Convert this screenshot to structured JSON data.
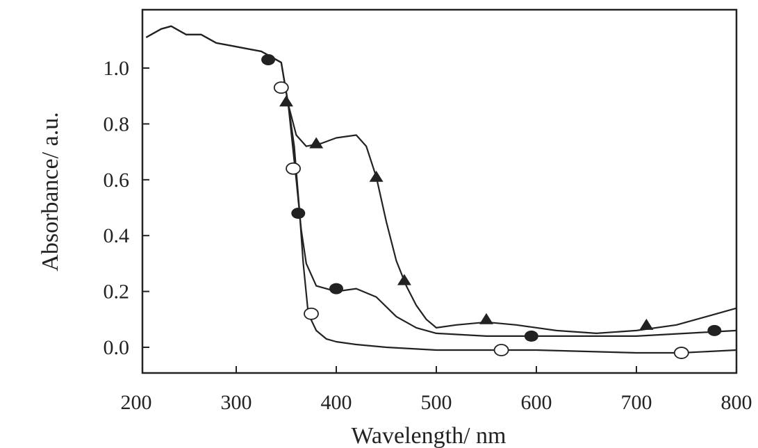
{
  "chart_data": {
    "type": "line",
    "title": "",
    "xlabel": "Wavelength/ nm",
    "ylabel": "Absorbance/ a.u.",
    "xlim": [
      200,
      800
    ],
    "ylim": [
      -0.1,
      1.2
    ],
    "grid": false,
    "legend": "none",
    "x_ticks": [
      200,
      300,
      400,
      500,
      600,
      700,
      800
    ],
    "x_tick_labels": [
      "200",
      "300",
      "400",
      "500",
      "600",
      "700",
      "800"
    ],
    "y_ticks": [
      0.0,
      0.2,
      0.4,
      0.6,
      0.8,
      1.0
    ],
    "y_tick_labels": [
      "0.0",
      "0.2",
      "0.4",
      "0.6",
      "0.8",
      "1.0"
    ],
    "series": [
      {
        "marker": "filled-triangle",
        "color": "#222222",
        "x": [
          210,
          225,
          235,
          250,
          265,
          280,
          295,
          310,
          325,
          345,
          352,
          360,
          370,
          385,
          400,
          420,
          430,
          440,
          450,
          460,
          470,
          480,
          490,
          500,
          520,
          550,
          580,
          620,
          660,
          700,
          740,
          770,
          800
        ],
        "y": [
          1.11,
          1.14,
          1.15,
          1.12,
          1.12,
          1.09,
          1.08,
          1.07,
          1.06,
          1.02,
          0.87,
          0.76,
          0.72,
          0.73,
          0.75,
          0.76,
          0.72,
          0.61,
          0.45,
          0.31,
          0.22,
          0.15,
          0.1,
          0.07,
          0.08,
          0.09,
          0.08,
          0.06,
          0.05,
          0.06,
          0.08,
          0.11,
          0.14
        ],
        "marker_x": [
          350,
          380,
          440,
          468,
          550,
          710
        ],
        "marker_y": [
          0.88,
          0.73,
          0.61,
          0.24,
          0.1,
          0.08
        ]
      },
      {
        "marker": "filled-circle",
        "color": "#222222",
        "x": [
          210,
          225,
          235,
          250,
          265,
          280,
          295,
          310,
          325,
          345,
          352,
          360,
          365,
          370,
          380,
          400,
          420,
          440,
          460,
          480,
          500,
          550,
          600,
          650,
          700,
          750,
          800
        ],
        "y": [
          1.11,
          1.14,
          1.15,
          1.12,
          1.12,
          1.09,
          1.08,
          1.07,
          1.06,
          1.02,
          0.87,
          0.6,
          0.42,
          0.3,
          0.22,
          0.2,
          0.21,
          0.18,
          0.11,
          0.07,
          0.05,
          0.04,
          0.04,
          0.04,
          0.04,
          0.05,
          0.06
        ],
        "marker_x": [
          332,
          362,
          400,
          595,
          778
        ],
        "marker_y": [
          1.03,
          0.48,
          0.21,
          0.04,
          0.06
        ]
      },
      {
        "marker": "open-circle",
        "color": "#222222",
        "x": [
          210,
          225,
          235,
          250,
          265,
          280,
          295,
          310,
          325,
          345,
          352,
          358,
          363,
          367,
          372,
          380,
          390,
          400,
          420,
          450,
          500,
          560,
          600,
          700,
          745,
          800
        ],
        "y": [
          1.11,
          1.14,
          1.15,
          1.12,
          1.12,
          1.09,
          1.08,
          1.07,
          1.06,
          1.02,
          0.87,
          0.72,
          0.5,
          0.3,
          0.12,
          0.06,
          0.03,
          0.02,
          0.01,
          0.0,
          -0.01,
          -0.01,
          -0.01,
          -0.02,
          -0.02,
          -0.01
        ],
        "marker_x": [
          345,
          357,
          375,
          565,
          745
        ],
        "marker_y": [
          0.93,
          0.64,
          0.12,
          -0.01,
          -0.02
        ]
      }
    ]
  }
}
